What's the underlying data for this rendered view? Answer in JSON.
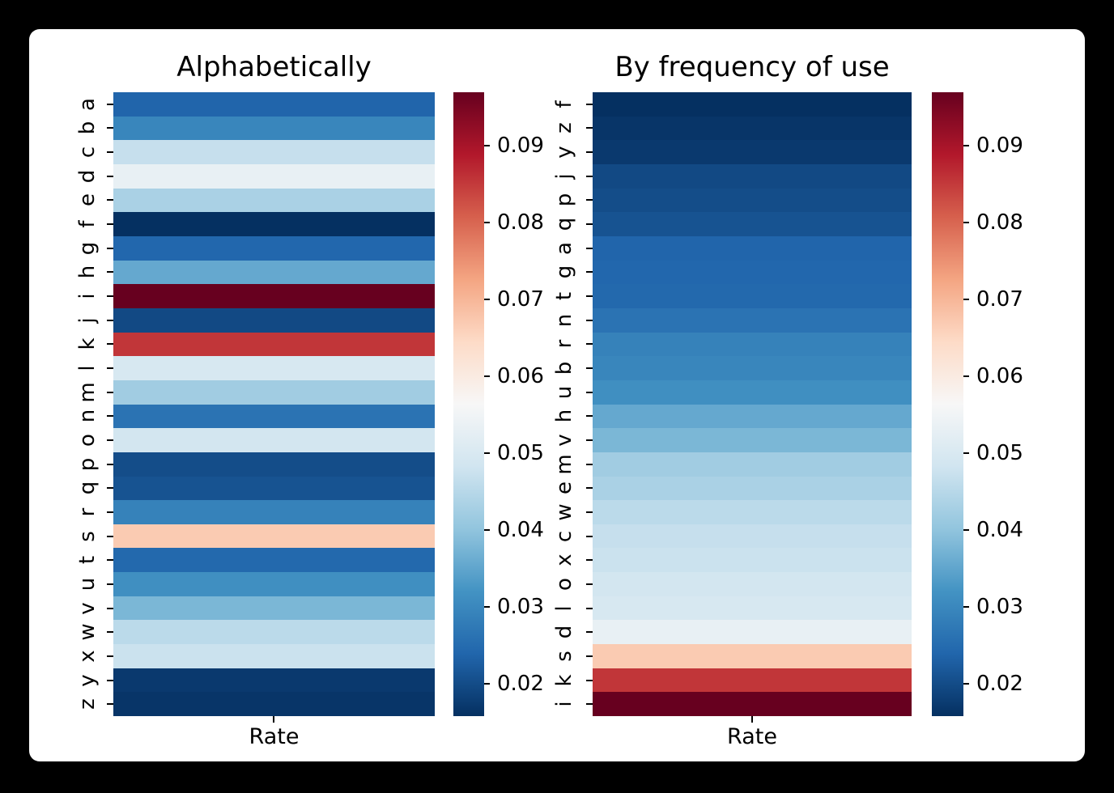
{
  "window": {
    "background_color": "#000000",
    "card_color": "#ffffff"
  },
  "chart_data": {
    "type": "heatmap",
    "colormap": "RdBu_r",
    "colormap_anchors": [
      "#053061",
      "#2166ac",
      "#4393c3",
      "#92c5de",
      "#d1e5f0",
      "#f7f7f7",
      "#fddbc7",
      "#f4a582",
      "#d6604d",
      "#b2182b",
      "#67001f"
    ],
    "vmin": 0.0158,
    "vmax": 0.0969,
    "column": "Rate",
    "colorbar_ticks": [
      0.02,
      0.03,
      0.04,
      0.05,
      0.06,
      0.07,
      0.08,
      0.09
    ],
    "rates": {
      "a": 0.0238,
      "b": 0.0297,
      "c": 0.0468,
      "d": 0.0531,
      "e": 0.0432,
      "f": 0.0158,
      "g": 0.0241,
      "h": 0.0355,
      "i": 0.0969,
      "j": 0.0196,
      "k": 0.0854,
      "l": 0.0495,
      "m": 0.042,
      "n": 0.0263,
      "o": 0.0487,
      "p": 0.0201,
      "q": 0.021,
      "r": 0.029,
      "s": 0.0669,
      "t": 0.0244,
      "u": 0.0313,
      "v": 0.0378,
      "w": 0.0454,
      "x": 0.0475,
      "y": 0.0172,
      "z": 0.0166
    },
    "panels": [
      {
        "title": "Alphabetically",
        "xlabel": "Rate",
        "row_order": [
          "a",
          "b",
          "c",
          "d",
          "e",
          "f",
          "g",
          "h",
          "i",
          "j",
          "k",
          "l",
          "m",
          "n",
          "o",
          "p",
          "q",
          "r",
          "s",
          "t",
          "u",
          "v",
          "w",
          "x",
          "y",
          "z"
        ]
      },
      {
        "title": "By frequency of use",
        "xlabel": "Rate",
        "row_order": [
          "f",
          "z",
          "y",
          "j",
          "p",
          "q",
          "a",
          "g",
          "t",
          "n",
          "r",
          "b",
          "u",
          "h",
          "v",
          "m",
          "e",
          "w",
          "c",
          "x",
          "o",
          "l",
          "d",
          "s",
          "k",
          "i"
        ]
      }
    ]
  }
}
